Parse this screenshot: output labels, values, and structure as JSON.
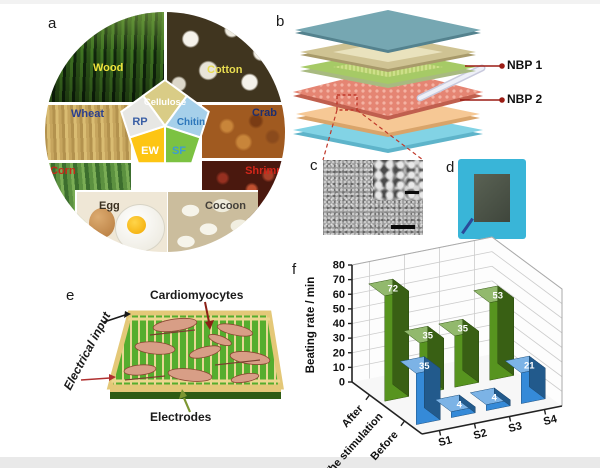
{
  "panels": {
    "a": {
      "letter": "a"
    },
    "b": {
      "letter": "b"
    },
    "c": {
      "letter": "c"
    },
    "d": {
      "letter": "d"
    },
    "e": {
      "letter": "e"
    },
    "f": {
      "letter": "f"
    }
  },
  "panel_a": {
    "segments": [
      {
        "name": "wood",
        "label": "Wood",
        "label_color": "#f0e43c"
      },
      {
        "name": "cotton",
        "label": "Cotton",
        "label_color": "#e8dc50"
      },
      {
        "name": "wheat",
        "label": "Wheat",
        "label_color": "#2a3f8f"
      },
      {
        "name": "corn",
        "label": "Corn",
        "label_color": "#c8281a"
      },
      {
        "name": "crab",
        "label": "Crab",
        "label_color": "#1e2f6e"
      },
      {
        "name": "shrimp",
        "label": "Shrimp",
        "label_color": "#d4261a"
      },
      {
        "name": "egg",
        "label": "Egg",
        "label_color": "#3a3020"
      },
      {
        "name": "cocoon",
        "label": "Cocoon",
        "label_color": "#44403a"
      }
    ],
    "pentagon": [
      {
        "name": "cellulose",
        "label": "Cellulose",
        "fill": "#d9cc86",
        "label_color": "#ffffff"
      },
      {
        "name": "chitin",
        "label": "Chitin",
        "fill": "#a6d0ea",
        "label_color": "#2e77bb"
      },
      {
        "name": "sf",
        "label": "SF",
        "fill": "#7cc242",
        "label_color": "#3f9bd0"
      },
      {
        "name": "ew",
        "label": "EW",
        "fill": "#fdc513",
        "label_color": "#ffffff"
      },
      {
        "name": "rp",
        "label": "RP",
        "fill": "#e7e7e4",
        "label_color": "#3a5fa5"
      }
    ]
  },
  "panel_b": {
    "annotations": [
      {
        "label": "NBP 1"
      },
      {
        "label": "NBP 2"
      }
    ],
    "pointer_color": "#9b1c14"
  },
  "panel_e": {
    "labels": {
      "top": "Cardiomyocytes",
      "side": "Electrical input",
      "bottom": "Electrodes"
    }
  },
  "chart_data": {
    "type": "bar",
    "projection": "3d",
    "ylabel": "Beating rate / min",
    "ylim": [
      0,
      80
    ],
    "ytick_step": 10,
    "categories": [
      "S1",
      "S2",
      "S3",
      "S4"
    ],
    "depth_axis_label": "The stimulation",
    "depth_categories": [
      "After",
      "Before"
    ],
    "grid": true,
    "series": [
      {
        "name": "After",
        "color": "#57941f",
        "values": [
          72,
          35,
          35,
          53
        ]
      },
      {
        "name": "Before",
        "color": "#358ad8",
        "values": [
          35,
          4,
          4,
          21
        ]
      }
    ]
  }
}
